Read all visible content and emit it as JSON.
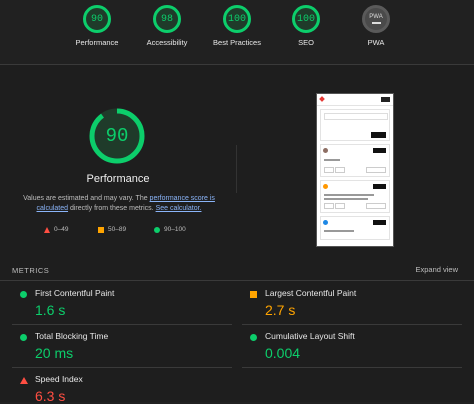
{
  "categories": [
    {
      "label": "Performance",
      "score": "90",
      "icon": "score-gauge"
    },
    {
      "label": "Accessibility",
      "score": "98",
      "icon": "score-gauge"
    },
    {
      "label": "Best Practices",
      "score": "100",
      "icon": "score-gauge"
    },
    {
      "label": "SEO",
      "score": "100",
      "icon": "score-gauge"
    },
    {
      "label": "PWA",
      "badge": "PWA",
      "icon": "pwa-badge"
    }
  ],
  "performance": {
    "score": "90",
    "score_fraction": 0.9,
    "title": "Performance",
    "desc_1": "Values are estimated and may vary. The ",
    "desc_link_1": "performance score is calculated",
    "desc_2": " directly from these metrics. ",
    "desc_link_2": "See calculator.",
    "legend": {
      "poor": "0–49",
      "average": "50–89",
      "good": "90–100"
    }
  },
  "metrics": {
    "title": "METRICS",
    "expand": "Expand view",
    "items": [
      {
        "name": "First Contentful Paint",
        "value": "1.6 s",
        "status": "good"
      },
      {
        "name": "Largest Contentful Paint",
        "value": "2.7 s",
        "status": "average"
      },
      {
        "name": "Total Blocking Time",
        "value": "20 ms",
        "status": "good"
      },
      {
        "name": "Cumulative Layout Shift",
        "value": "0.004",
        "status": "good"
      },
      {
        "name": "Speed Index",
        "value": "6.3 s",
        "status": "poor"
      }
    ]
  },
  "colors": {
    "good": "#0cce6b",
    "average": "#ffa400",
    "poor": "#ff4e42"
  }
}
